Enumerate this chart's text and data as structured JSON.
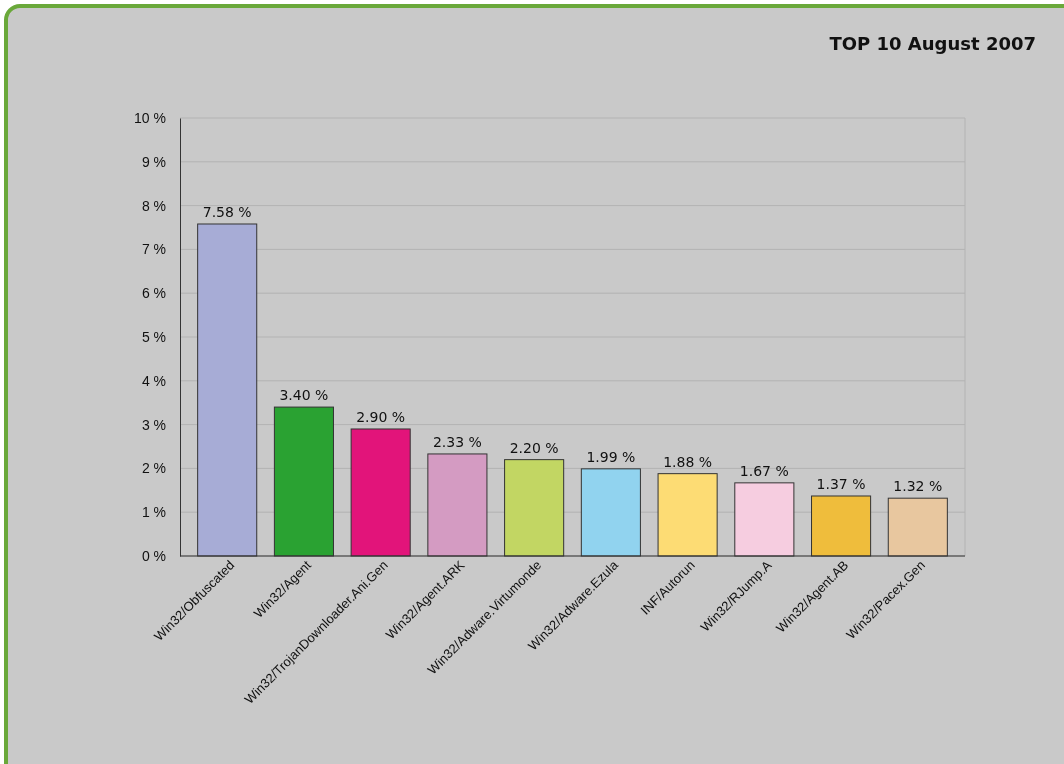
{
  "chart_data": {
    "type": "bar",
    "title": "TOP 10 August 2007",
    "categories": [
      "Win32/Obfuscated",
      "Win32/Agent",
      "Win32/TrojanDownloader.Ani.Gen",
      "Win32/Agent.ARK",
      "Win32/Adware.Virtumonde",
      "Win32/Adware.Ezula",
      "INF/Autorun",
      "Win32/RJump.A",
      "Win32/Agent.AB",
      "Win32/Pacex.Gen"
    ],
    "values": [
      7.58,
      3.4,
      2.9,
      2.33,
      2.2,
      1.99,
      1.88,
      1.67,
      1.37,
      1.32
    ],
    "colors": [
      "#a7acd6",
      "#2aa232",
      "#e2147a",
      "#d49bc2",
      "#c2d663",
      "#91d3ef",
      "#fddc74",
      "#f6cde0",
      "#efbd3c",
      "#e8c79f"
    ],
    "value_labels": [
      "7.58 %",
      "3.40 %",
      "2.90 %",
      "2.33 %",
      "2.20 %",
      "1.99 %",
      "1.88 %",
      "1.67 %",
      "1.37 %",
      "1.32 %"
    ],
    "ylim": [
      0,
      10
    ],
    "yticks": [
      {
        "value": 0,
        "label": "0 %"
      },
      {
        "value": 1,
        "label": "1 %"
      },
      {
        "value": 2,
        "label": "2 %"
      },
      {
        "value": 3,
        "label": "3 %"
      },
      {
        "value": 4,
        "label": "4 %"
      },
      {
        "value": 5,
        "label": "5 %"
      },
      {
        "value": 6,
        "label": "6 %"
      },
      {
        "value": 7,
        "label": "7 %"
      },
      {
        "value": 8,
        "label": "8 %"
      },
      {
        "value": 9,
        "label": "9 %"
      },
      {
        "value": 10,
        "label": "10 %"
      }
    ],
    "grid": "y"
  }
}
